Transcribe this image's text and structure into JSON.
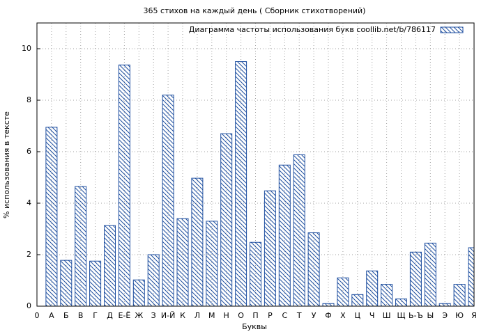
{
  "chart_data": {
    "type": "bar",
    "title": "365 стихов на каждый день ( Сборник стихотворений)",
    "x_label": "Буквы",
    "y_label": "% использования в тексте",
    "categories": [
      "0",
      "А",
      "Б",
      "В",
      "Г",
      "Д",
      "Е-Ё",
      "Ж",
      "З",
      "И-Й",
      "К",
      "Л",
      "М",
      "Н",
      "О",
      "П",
      "Р",
      "С",
      "Т",
      "У",
      "Ф",
      "Х",
      "Ц",
      "Ч",
      "Ш",
      "Щ",
      "Ь-Ъ",
      "Ы",
      "Э",
      "Ю",
      "Я"
    ],
    "series": [
      {
        "name": "Диаграмма частоты использования букв coollib.net/b/786117",
        "color": "#1f4fa0",
        "values": [
          null,
          6.95,
          1.78,
          4.65,
          1.75,
          3.13,
          9.37,
          1.02,
          2.0,
          8.2,
          3.4,
          4.97,
          3.3,
          6.7,
          9.5,
          2.48,
          4.48,
          5.48,
          5.88,
          2.85,
          0.1,
          1.1,
          0.45,
          1.37,
          0.85,
          0.28,
          2.1,
          2.45,
          0.1,
          0.85,
          2.27
        ]
      }
    ],
    "ylim": [
      0,
      11
    ],
    "yticks": [
      0,
      2,
      4,
      6,
      8,
      10
    ],
    "grid": true,
    "legend": "top-right"
  }
}
